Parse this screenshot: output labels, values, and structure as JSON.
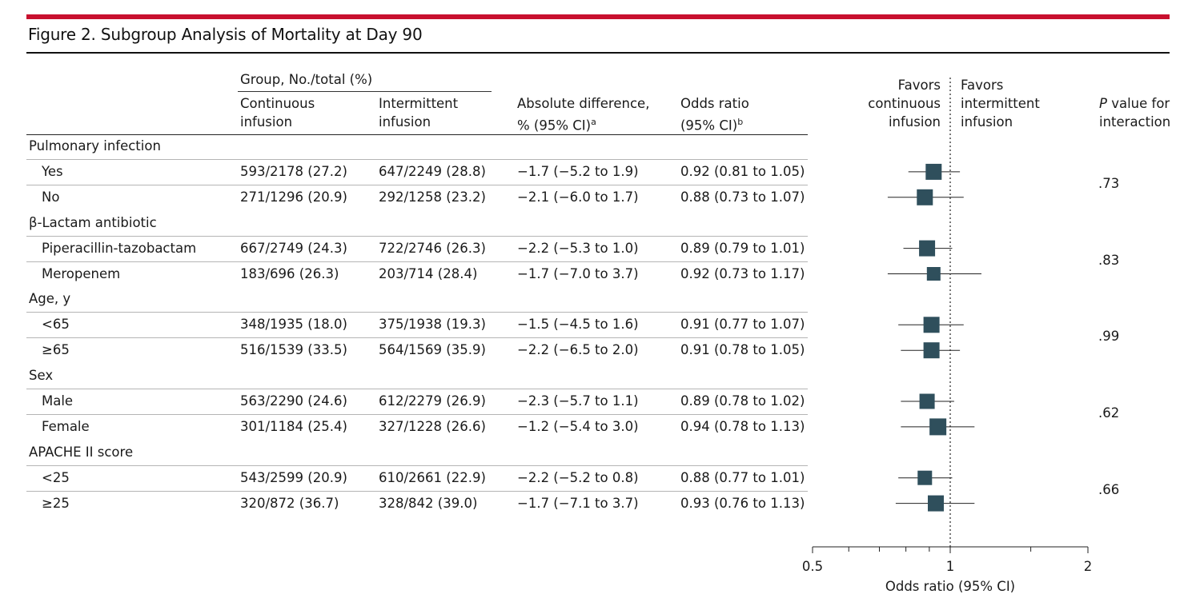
{
  "figure": {
    "title": "Figure 2. Subgroup Analysis of Mortality at Day 90"
  },
  "headers": {
    "group": "Group, No./total (%)",
    "continuous": "Continuous\ninfusion",
    "intermittent": "Intermittent\ninfusion",
    "absdiff": "Absolute difference,\n% (95% CI)",
    "absdiff_note": "a",
    "or": "Odds ratio\n(95% CI)",
    "or_note": "b",
    "favors_left": "Favors\ncontinuous\ninfusion",
    "favors_right": "Favors\nintermittent\ninfusion",
    "pvalue_italic": "P",
    "pvalue_rest": " value for",
    "pvalue_line2": "interaction"
  },
  "colors": {
    "accent_bar": "#c8102e",
    "marker": "#2f4f5c"
  },
  "chart_data": {
    "type": "forest",
    "xlabel": "Odds ratio (95% CI)",
    "xscale": "log",
    "xlim": [
      0.5,
      2
    ],
    "xticks": [
      0.5,
      1,
      2
    ],
    "xtick_labels": [
      "0.5",
      "1",
      "2"
    ],
    "reference_line": 1,
    "groups": [
      {
        "name": "Pulmonary infection",
        "p_interaction": ".73",
        "rows": [
          {
            "label": "Yes",
            "continuous": "593/2178 (27.2)",
            "intermittent": "647/2249 (28.8)",
            "absdiff": "−1.7 (−5.2 to 1.9)",
            "or_text": "0.92 (0.81 to 1.05)",
            "or": 0.92,
            "lo": 0.81,
            "hi": 1.05,
            "weight": 1.0
          },
          {
            "label": "No",
            "continuous": "271/1296 (20.9)",
            "intermittent": "292/1258 (23.2)",
            "absdiff": "−2.1 (−6.0 to 1.7)",
            "or_text": "0.88 (0.73 to 1.07)",
            "or": 0.88,
            "lo": 0.73,
            "hi": 1.07,
            "weight": 1.0
          }
        ]
      },
      {
        "name": "β-Lactam antibiotic",
        "p_interaction": ".83",
        "rows": [
          {
            "label": "Piperacillin-tazobactam",
            "continuous": "667/2749 (24.3)",
            "intermittent": "722/2746 (26.3)",
            "absdiff": "−2.2 (−5.3 to 1.0)",
            "or_text": "0.89 (0.79 to 1.01)",
            "or": 0.89,
            "lo": 0.79,
            "hi": 1.01,
            "weight": 1.0
          },
          {
            "label": "Meropenem",
            "continuous": "183/696 (26.3)",
            "intermittent": "203/714 (28.4)",
            "absdiff": "−1.7 (−7.0 to 3.7)",
            "or_text": "0.92 (0.73 to 1.17)",
            "or": 0.92,
            "lo": 0.73,
            "hi": 1.17,
            "weight": 0.85
          }
        ]
      },
      {
        "name": "Age, y",
        "p_interaction": ".99",
        "rows": [
          {
            "label": "<65",
            "continuous": "348/1935 (18.0)",
            "intermittent": "375/1938 (19.3)",
            "absdiff": "−1.5 (−4.5 to 1.6)",
            "or_text": "0.91 (0.77 to 1.07)",
            "or": 0.91,
            "lo": 0.77,
            "hi": 1.07,
            "weight": 1.0
          },
          {
            "label": "≥65",
            "continuous": "516/1539 (33.5)",
            "intermittent": "564/1569 (35.9)",
            "absdiff": "−2.2 (−6.5 to 2.0)",
            "or_text": "0.91 (0.78 to 1.05)",
            "or": 0.91,
            "lo": 0.78,
            "hi": 1.05,
            "weight": 1.0
          }
        ]
      },
      {
        "name": "Sex",
        "p_interaction": ".62",
        "rows": [
          {
            "label": "Male",
            "continuous": "563/2290 (24.6)",
            "intermittent": "612/2279 (26.9)",
            "absdiff": "−2.3 (−5.7 to 1.1)",
            "or_text": "0.89 (0.78 to 1.02)",
            "or": 0.89,
            "lo": 0.78,
            "hi": 1.02,
            "weight": 0.95
          },
          {
            "label": "Female",
            "continuous": "301/1184 (25.4)",
            "intermittent": "327/1228 (26.6)",
            "absdiff": "−1.2 (−5.4 to 3.0)",
            "or_text": "0.94 (0.78 to 1.13)",
            "or": 0.94,
            "lo": 0.78,
            "hi": 1.13,
            "weight": 1.05
          }
        ]
      },
      {
        "name": "APACHE II score",
        "p_interaction": ".66",
        "rows": [
          {
            "label": "<25",
            "continuous": "543/2599 (20.9)",
            "intermittent": "610/2661 (22.9)",
            "absdiff": "−2.2 (−5.2 to 0.8)",
            "or_text": "0.88 (0.77 to 1.01)",
            "or": 0.88,
            "lo": 0.77,
            "hi": 1.01,
            "weight": 0.9
          },
          {
            "label": "≥25",
            "continuous": "320/872 (36.7)",
            "intermittent": "328/842 (39.0)",
            "absdiff": "−1.7 (−7.1 to 3.7)",
            "or_text": "0.93 (0.76 to 1.13)",
            "or": 0.93,
            "lo": 0.76,
            "hi": 1.13,
            "weight": 1.0
          }
        ]
      }
    ]
  }
}
